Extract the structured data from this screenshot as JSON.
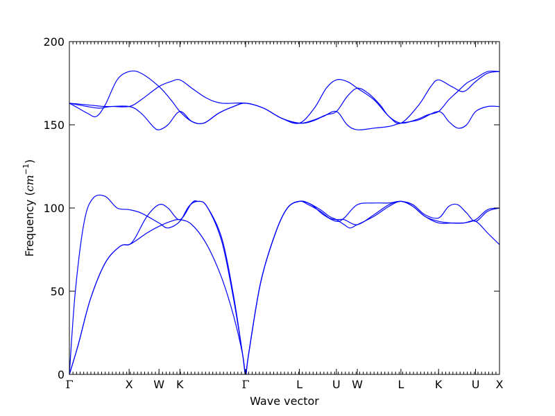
{
  "chart_data": {
    "type": "line",
    "xlabel": "Wave vector",
    "ylabel": "Frequency",
    "ylabel_unit": "cm",
    "ylabel_unit_exponent": "−1",
    "ylim": [
      0,
      200
    ],
    "yticks": [
      0,
      50,
      100,
      150,
      200
    ],
    "xlim": [
      0,
      7.2
    ],
    "grid": false,
    "line_color": "#0000ff",
    "high_symmetry_points": [
      {
        "label": "Γ",
        "x": 0.0
      },
      {
        "label": "X",
        "x": 1.0
      },
      {
        "label": "W",
        "x": 1.5
      },
      {
        "label": "K",
        "x": 1.85
      },
      {
        "label": "Γ",
        "x": 2.95
      },
      {
        "label": "L",
        "x": 3.85
      },
      {
        "label": "U",
        "x": 4.47
      },
      {
        "label": "W",
        "x": 4.82
      },
      {
        "label": "L",
        "x": 5.55
      },
      {
        "label": "K",
        "x": 6.18
      },
      {
        "label": "U",
        "x": 6.8
      },
      {
        "label": "X",
        "x": 7.2
      }
    ],
    "series": [
      {
        "values": [
          [
            0,
            0
          ],
          [
            0.15,
            18
          ],
          [
            0.35,
            45
          ],
          [
            0.6,
            67
          ],
          [
            0.85,
            77
          ],
          [
            1.0,
            78
          ],
          [
            1.1,
            80
          ],
          [
            1.3,
            85
          ],
          [
            1.5,
            89
          ],
          [
            1.7,
            92
          ],
          [
            1.85,
            93
          ],
          [
            2.05,
            90
          ],
          [
            2.3,
            78
          ],
          [
            2.55,
            58
          ],
          [
            2.75,
            35
          ],
          [
            2.9,
            12
          ],
          [
            2.95,
            0
          ],
          [
            3.0,
            12
          ],
          [
            3.2,
            55
          ],
          [
            3.45,
            85
          ],
          [
            3.65,
            100
          ],
          [
            3.85,
            104
          ],
          [
            4.0,
            102
          ],
          [
            4.2,
            98
          ],
          [
            4.35,
            94
          ],
          [
            4.47,
            93
          ],
          [
            4.6,
            93
          ],
          [
            4.82,
            90
          ],
          [
            5.1,
            96
          ],
          [
            5.35,
            102
          ],
          [
            5.55,
            104
          ],
          [
            5.75,
            101
          ],
          [
            5.95,
            95
          ],
          [
            6.18,
            91
          ],
          [
            6.4,
            91
          ],
          [
            6.6,
            91
          ],
          [
            6.8,
            92
          ],
          [
            7.0,
            85
          ],
          [
            7.2,
            78
          ]
        ]
      },
      {
        "values": [
          [
            0,
            0
          ],
          [
            0.15,
            18
          ],
          [
            0.35,
            45
          ],
          [
            0.6,
            67
          ],
          [
            0.85,
            77
          ],
          [
            1.0,
            78
          ],
          [
            1.1,
            82
          ],
          [
            1.3,
            95
          ],
          [
            1.5,
            102
          ],
          [
            1.65,
            100
          ],
          [
            1.85,
            93
          ],
          [
            2.05,
            103
          ],
          [
            2.15,
            104
          ],
          [
            2.3,
            101
          ],
          [
            2.55,
            80
          ],
          [
            2.75,
            45
          ],
          [
            2.9,
            12
          ],
          [
            2.95,
            0
          ],
          [
            3.0,
            12
          ],
          [
            3.2,
            55
          ],
          [
            3.45,
            85
          ],
          [
            3.65,
            100
          ],
          [
            3.85,
            104
          ],
          [
            4.0,
            103
          ],
          [
            4.2,
            99
          ],
          [
            4.35,
            95
          ],
          [
            4.47,
            93
          ],
          [
            4.6,
            90
          ],
          [
            4.7,
            88
          ],
          [
            4.82,
            90
          ],
          [
            5.1,
            95
          ],
          [
            5.35,
            101
          ],
          [
            5.55,
            104
          ],
          [
            5.75,
            101
          ],
          [
            5.95,
            95
          ],
          [
            6.18,
            92
          ],
          [
            6.4,
            91
          ],
          [
            6.6,
            91
          ],
          [
            6.8,
            93
          ],
          [
            7.0,
            99
          ],
          [
            7.2,
            100
          ]
        ]
      },
      {
        "values": [
          [
            0,
            0
          ],
          [
            0.1,
            50
          ],
          [
            0.25,
            92
          ],
          [
            0.4,
            106
          ],
          [
            0.6,
            107
          ],
          [
            0.8,
            100
          ],
          [
            1.0,
            99
          ],
          [
            1.2,
            97
          ],
          [
            1.5,
            91
          ],
          [
            1.65,
            88
          ],
          [
            1.85,
            92
          ],
          [
            2.0,
            101
          ],
          [
            2.15,
            104
          ],
          [
            2.3,
            101
          ],
          [
            2.55,
            82
          ],
          [
            2.75,
            47
          ],
          [
            2.9,
            12
          ],
          [
            2.95,
            0
          ],
          [
            3.0,
            12
          ],
          [
            3.2,
            55
          ],
          [
            3.45,
            85
          ],
          [
            3.65,
            100
          ],
          [
            3.85,
            104
          ],
          [
            4.05,
            102
          ],
          [
            4.25,
            96
          ],
          [
            4.47,
            92
          ],
          [
            4.6,
            94
          ],
          [
            4.82,
            102
          ],
          [
            5.1,
            103
          ],
          [
            5.35,
            103
          ],
          [
            5.55,
            104
          ],
          [
            5.75,
            102
          ],
          [
            5.95,
            96
          ],
          [
            6.18,
            94
          ],
          [
            6.35,
            101
          ],
          [
            6.5,
            102
          ],
          [
            6.65,
            97
          ],
          [
            6.8,
            92
          ],
          [
            7.0,
            98
          ],
          [
            7.2,
            100
          ]
        ]
      },
      {
        "values": [
          [
            0,
            163
          ],
          [
            0.3,
            161
          ],
          [
            0.5,
            160
          ],
          [
            0.7,
            161
          ],
          [
            1.0,
            161
          ],
          [
            1.2,
            165
          ],
          [
            1.5,
            173
          ],
          [
            1.7,
            176
          ],
          [
            1.85,
            177
          ],
          [
            2.05,
            172
          ],
          [
            2.3,
            166
          ],
          [
            2.55,
            163
          ],
          [
            2.95,
            163
          ],
          [
            3.25,
            160
          ],
          [
            3.55,
            154
          ],
          [
            3.85,
            151
          ],
          [
            4.1,
            160
          ],
          [
            4.3,
            172
          ],
          [
            4.47,
            177
          ],
          [
            4.65,
            176
          ],
          [
            4.82,
            172
          ],
          [
            5.1,
            165
          ],
          [
            5.35,
            155
          ],
          [
            5.55,
            151
          ],
          [
            5.85,
            162
          ],
          [
            6.05,
            173
          ],
          [
            6.18,
            177
          ],
          [
            6.4,
            173
          ],
          [
            6.6,
            170
          ],
          [
            6.8,
            176
          ],
          [
            7.0,
            181
          ],
          [
            7.2,
            182
          ]
        ]
      },
      {
        "values": [
          [
            0,
            163
          ],
          [
            0.15,
            160
          ],
          [
            0.3,
            157
          ],
          [
            0.45,
            155
          ],
          [
            0.6,
            162
          ],
          [
            0.8,
            177
          ],
          [
            1.0,
            182
          ],
          [
            1.2,
            181
          ],
          [
            1.5,
            173
          ],
          [
            1.7,
            165
          ],
          [
            1.85,
            158
          ],
          [
            2.05,
            152
          ],
          [
            2.25,
            151
          ],
          [
            2.5,
            157
          ],
          [
            2.75,
            161
          ],
          [
            2.95,
            163
          ],
          [
            3.25,
            160
          ],
          [
            3.55,
            154
          ],
          [
            3.85,
            151
          ],
          [
            4.1,
            153
          ],
          [
            4.3,
            156
          ],
          [
            4.47,
            158
          ],
          [
            4.65,
            167
          ],
          [
            4.82,
            172
          ],
          [
            5.0,
            169
          ],
          [
            5.2,
            162
          ],
          [
            5.35,
            155
          ],
          [
            5.55,
            151
          ],
          [
            5.8,
            153
          ],
          [
            6.0,
            156
          ],
          [
            6.18,
            158
          ],
          [
            6.35,
            165
          ],
          [
            6.5,
            170
          ],
          [
            6.65,
            175
          ],
          [
            6.8,
            178
          ],
          [
            7.0,
            182
          ],
          [
            7.2,
            182
          ]
        ]
      },
      {
        "values": [
          [
            0,
            163
          ],
          [
            0.3,
            162
          ],
          [
            0.6,
            161
          ],
          [
            1.0,
            161
          ],
          [
            1.2,
            157
          ],
          [
            1.4,
            149
          ],
          [
            1.5,
            147
          ],
          [
            1.65,
            150
          ],
          [
            1.85,
            158
          ],
          [
            2.05,
            152
          ],
          [
            2.25,
            151
          ],
          [
            2.5,
            157
          ],
          [
            2.75,
            161
          ],
          [
            2.95,
            163
          ],
          [
            3.25,
            160
          ],
          [
            3.55,
            154
          ],
          [
            3.85,
            151
          ],
          [
            4.05,
            152
          ],
          [
            4.25,
            155
          ],
          [
            4.47,
            158
          ],
          [
            4.65,
            150
          ],
          [
            4.82,
            147
          ],
          [
            5.1,
            148
          ],
          [
            5.35,
            149
          ],
          [
            5.55,
            151
          ],
          [
            5.85,
            153
          ],
          [
            6.18,
            158
          ],
          [
            6.35,
            152
          ],
          [
            6.5,
            148
          ],
          [
            6.65,
            150
          ],
          [
            6.8,
            158
          ],
          [
            7.0,
            161
          ],
          [
            7.2,
            161
          ]
        ]
      }
    ]
  }
}
